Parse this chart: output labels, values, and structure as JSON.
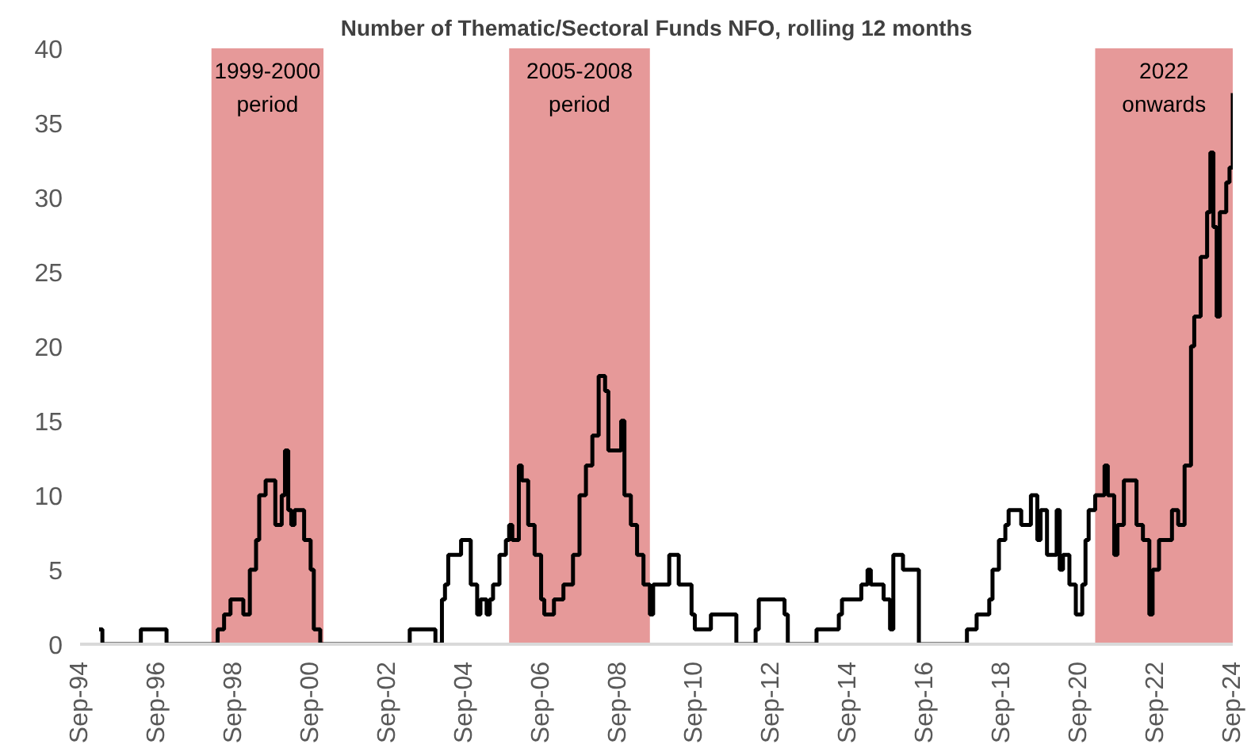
{
  "chart_data": {
    "type": "step",
    "title": "Number of Thematic/Sectoral Funds NFO, rolling 12 months",
    "x": [
      "1995-03",
      "1995-04",
      "1996-04",
      "1996-12",
      "1998-04",
      "1998-06",
      "1998-08",
      "1998-12",
      "1999-02",
      "1999-04",
      "1999-05",
      "1999-07",
      "1999-10",
      "1999-12",
      "2000-01",
      "2000-02",
      "2000-03",
      "2000-04",
      "2000-07",
      "2000-09",
      "2000-10",
      "2000-12",
      "2003-04",
      "2003-12",
      "2004-02",
      "2004-03",
      "2004-04",
      "2004-08",
      "2004-11",
      "2005-01",
      "2005-02",
      "2005-04",
      "2005-05",
      "2005-06",
      "2005-08",
      "2005-10",
      "2005-11",
      "2005-12",
      "2006-02",
      "2006-03",
      "2006-05",
      "2006-07",
      "2006-09",
      "2006-10",
      "2007-01",
      "2007-04",
      "2007-07",
      "2007-09",
      "2007-11",
      "2008-01",
      "2008-03",
      "2008-05",
      "2008-06",
      "2008-10",
      "2008-11",
      "2009-01",
      "2009-03",
      "2009-05",
      "2009-07",
      "2009-08",
      "2010-01",
      "2010-04",
      "2010-08",
      "2010-09",
      "2011-02",
      "2011-10",
      "2012-04",
      "2012-05",
      "2013-01",
      "2013-02",
      "2013-11",
      "2014-06",
      "2014-07",
      "2015-01",
      "2015-03",
      "2015-04",
      "2015-08",
      "2015-10",
      "2015-11",
      "2016-02",
      "2016-07",
      "2017-10",
      "2018-01",
      "2018-05",
      "2018-06",
      "2018-08",
      "2018-10",
      "2018-11",
      "2019-03",
      "2019-06",
      "2019-08",
      "2019-09",
      "2019-11",
      "2020-02",
      "2020-03",
      "2020-04",
      "2020-06",
      "2020-08",
      "2020-10",
      "2020-11",
      "2020-12",
      "2021-02",
      "2021-05",
      "2021-06",
      "2021-08",
      "2021-09",
      "2021-11",
      "2022-03",
      "2022-05",
      "2022-07",
      "2022-08",
      "2022-10",
      "2023-02",
      "2023-04",
      "2023-06",
      "2023-08",
      "2023-09",
      "2023-11",
      "2024-01",
      "2024-02",
      "2024-03",
      "2024-04",
      "2024-05",
      "2024-07",
      "2024-08",
      "2024-09"
    ],
    "series": [
      {
        "color": "#000000",
        "values": [
          1,
          0,
          1,
          0,
          1,
          2,
          3,
          2,
          5,
          7,
          10,
          11,
          8,
          10,
          13,
          9,
          8,
          9,
          7,
          5,
          1,
          0,
          1,
          0,
          3,
          4,
          6,
          7,
          4,
          2,
          3,
          2,
          3,
          4,
          6,
          7,
          8,
          7,
          12,
          11,
          8,
          6,
          3,
          2,
          3,
          4,
          6,
          10,
          12,
          14,
          18,
          17,
          13,
          15,
          10,
          8,
          6,
          4,
          2,
          4,
          6,
          4,
          2,
          1,
          2,
          0,
          1,
          3,
          2,
          0,
          1,
          2,
          3,
          4,
          5,
          4,
          3,
          1,
          6,
          5,
          0,
          1,
          2,
          3,
          5,
          7,
          8,
          9,
          8,
          10,
          7,
          9,
          6,
          9,
          5,
          6,
          4,
          2,
          4,
          7,
          9,
          10,
          12,
          10,
          6,
          8,
          11,
          8,
          7,
          2,
          5,
          7,
          9,
          8,
          12,
          20,
          22,
          26,
          29,
          33,
          28,
          22,
          29,
          31,
          32,
          37
        ]
      }
    ],
    "xlim": [
      "1994-09",
      "2024-09"
    ],
    "xticks": [
      {
        "value": "1994-09",
        "label": "Sep-94"
      },
      {
        "value": "1996-09",
        "label": "Sep-96"
      },
      {
        "value": "1998-09",
        "label": "Sep-98"
      },
      {
        "value": "2000-09",
        "label": "Sep-00"
      },
      {
        "value": "2002-09",
        "label": "Sep-02"
      },
      {
        "value": "2004-09",
        "label": "Sep-04"
      },
      {
        "value": "2006-09",
        "label": "Sep-06"
      },
      {
        "value": "2008-09",
        "label": "Sep-08"
      },
      {
        "value": "2010-09",
        "label": "Sep-10"
      },
      {
        "value": "2012-09",
        "label": "Sep-12"
      },
      {
        "value": "2014-09",
        "label": "Sep-14"
      },
      {
        "value": "2016-09",
        "label": "Sep-16"
      },
      {
        "value": "2018-09",
        "label": "Sep-18"
      },
      {
        "value": "2020-09",
        "label": "Sep-20"
      },
      {
        "value": "2022-09",
        "label": "Sep-22"
      },
      {
        "value": "2024-09",
        "label": "Sep-24"
      }
    ],
    "ylim": [
      0,
      40
    ],
    "yticks": [
      0,
      5,
      10,
      15,
      20,
      25,
      30,
      35,
      40
    ],
    "bands": [
      {
        "axis": "x",
        "from": "1998-02",
        "to": "2001-01",
        "color": "#c00000",
        "label": "1999-2000\nperiod"
      },
      {
        "axis": "x",
        "from": "2005-11",
        "to": "2009-07",
        "color": "#c00000",
        "label": "2005-2008\nperiod"
      },
      {
        "axis": "x",
        "from": "2021-02",
        "to": "2024-09",
        "color": "#c00000",
        "label": "2022\nonwards"
      }
    ],
    "grid": false
  }
}
